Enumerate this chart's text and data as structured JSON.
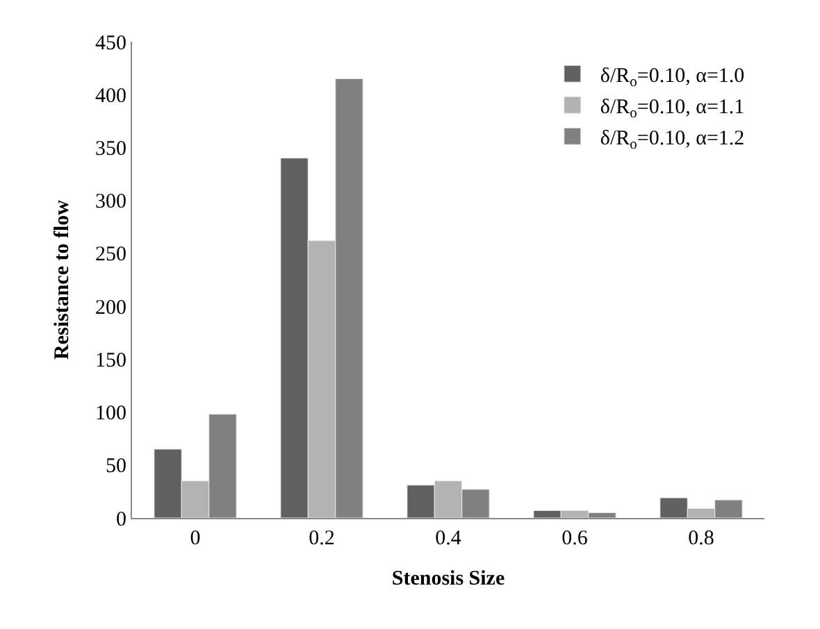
{
  "chart_data": {
    "type": "bar",
    "xlabel": "Stenosis Size",
    "ylabel": "Resistance to flow",
    "categories": [
      "0",
      "0.2",
      "0.4",
      "0.6",
      "0.8"
    ],
    "series": [
      {
        "name": "δ/R$_{o}$=0.10, α=1.0",
        "color": "#606060",
        "values": [
          65,
          340,
          31,
          7,
          19
        ]
      },
      {
        "name": "δ/R$_{o}$=0.10, α=1.1",
        "color": "#b3b3b3",
        "values": [
          35,
          262,
          35,
          7,
          9
        ]
      },
      {
        "name": "δ/R$_{o}$=0.10, α=1.2",
        "color": "#808080",
        "values": [
          98,
          415,
          27,
          5,
          17
        ]
      }
    ],
    "ylim": [
      0,
      450
    ],
    "yticks": [
      0,
      50,
      100,
      150,
      200,
      250,
      300,
      350,
      400,
      450
    ],
    "grid": false,
    "legend": "top right"
  }
}
